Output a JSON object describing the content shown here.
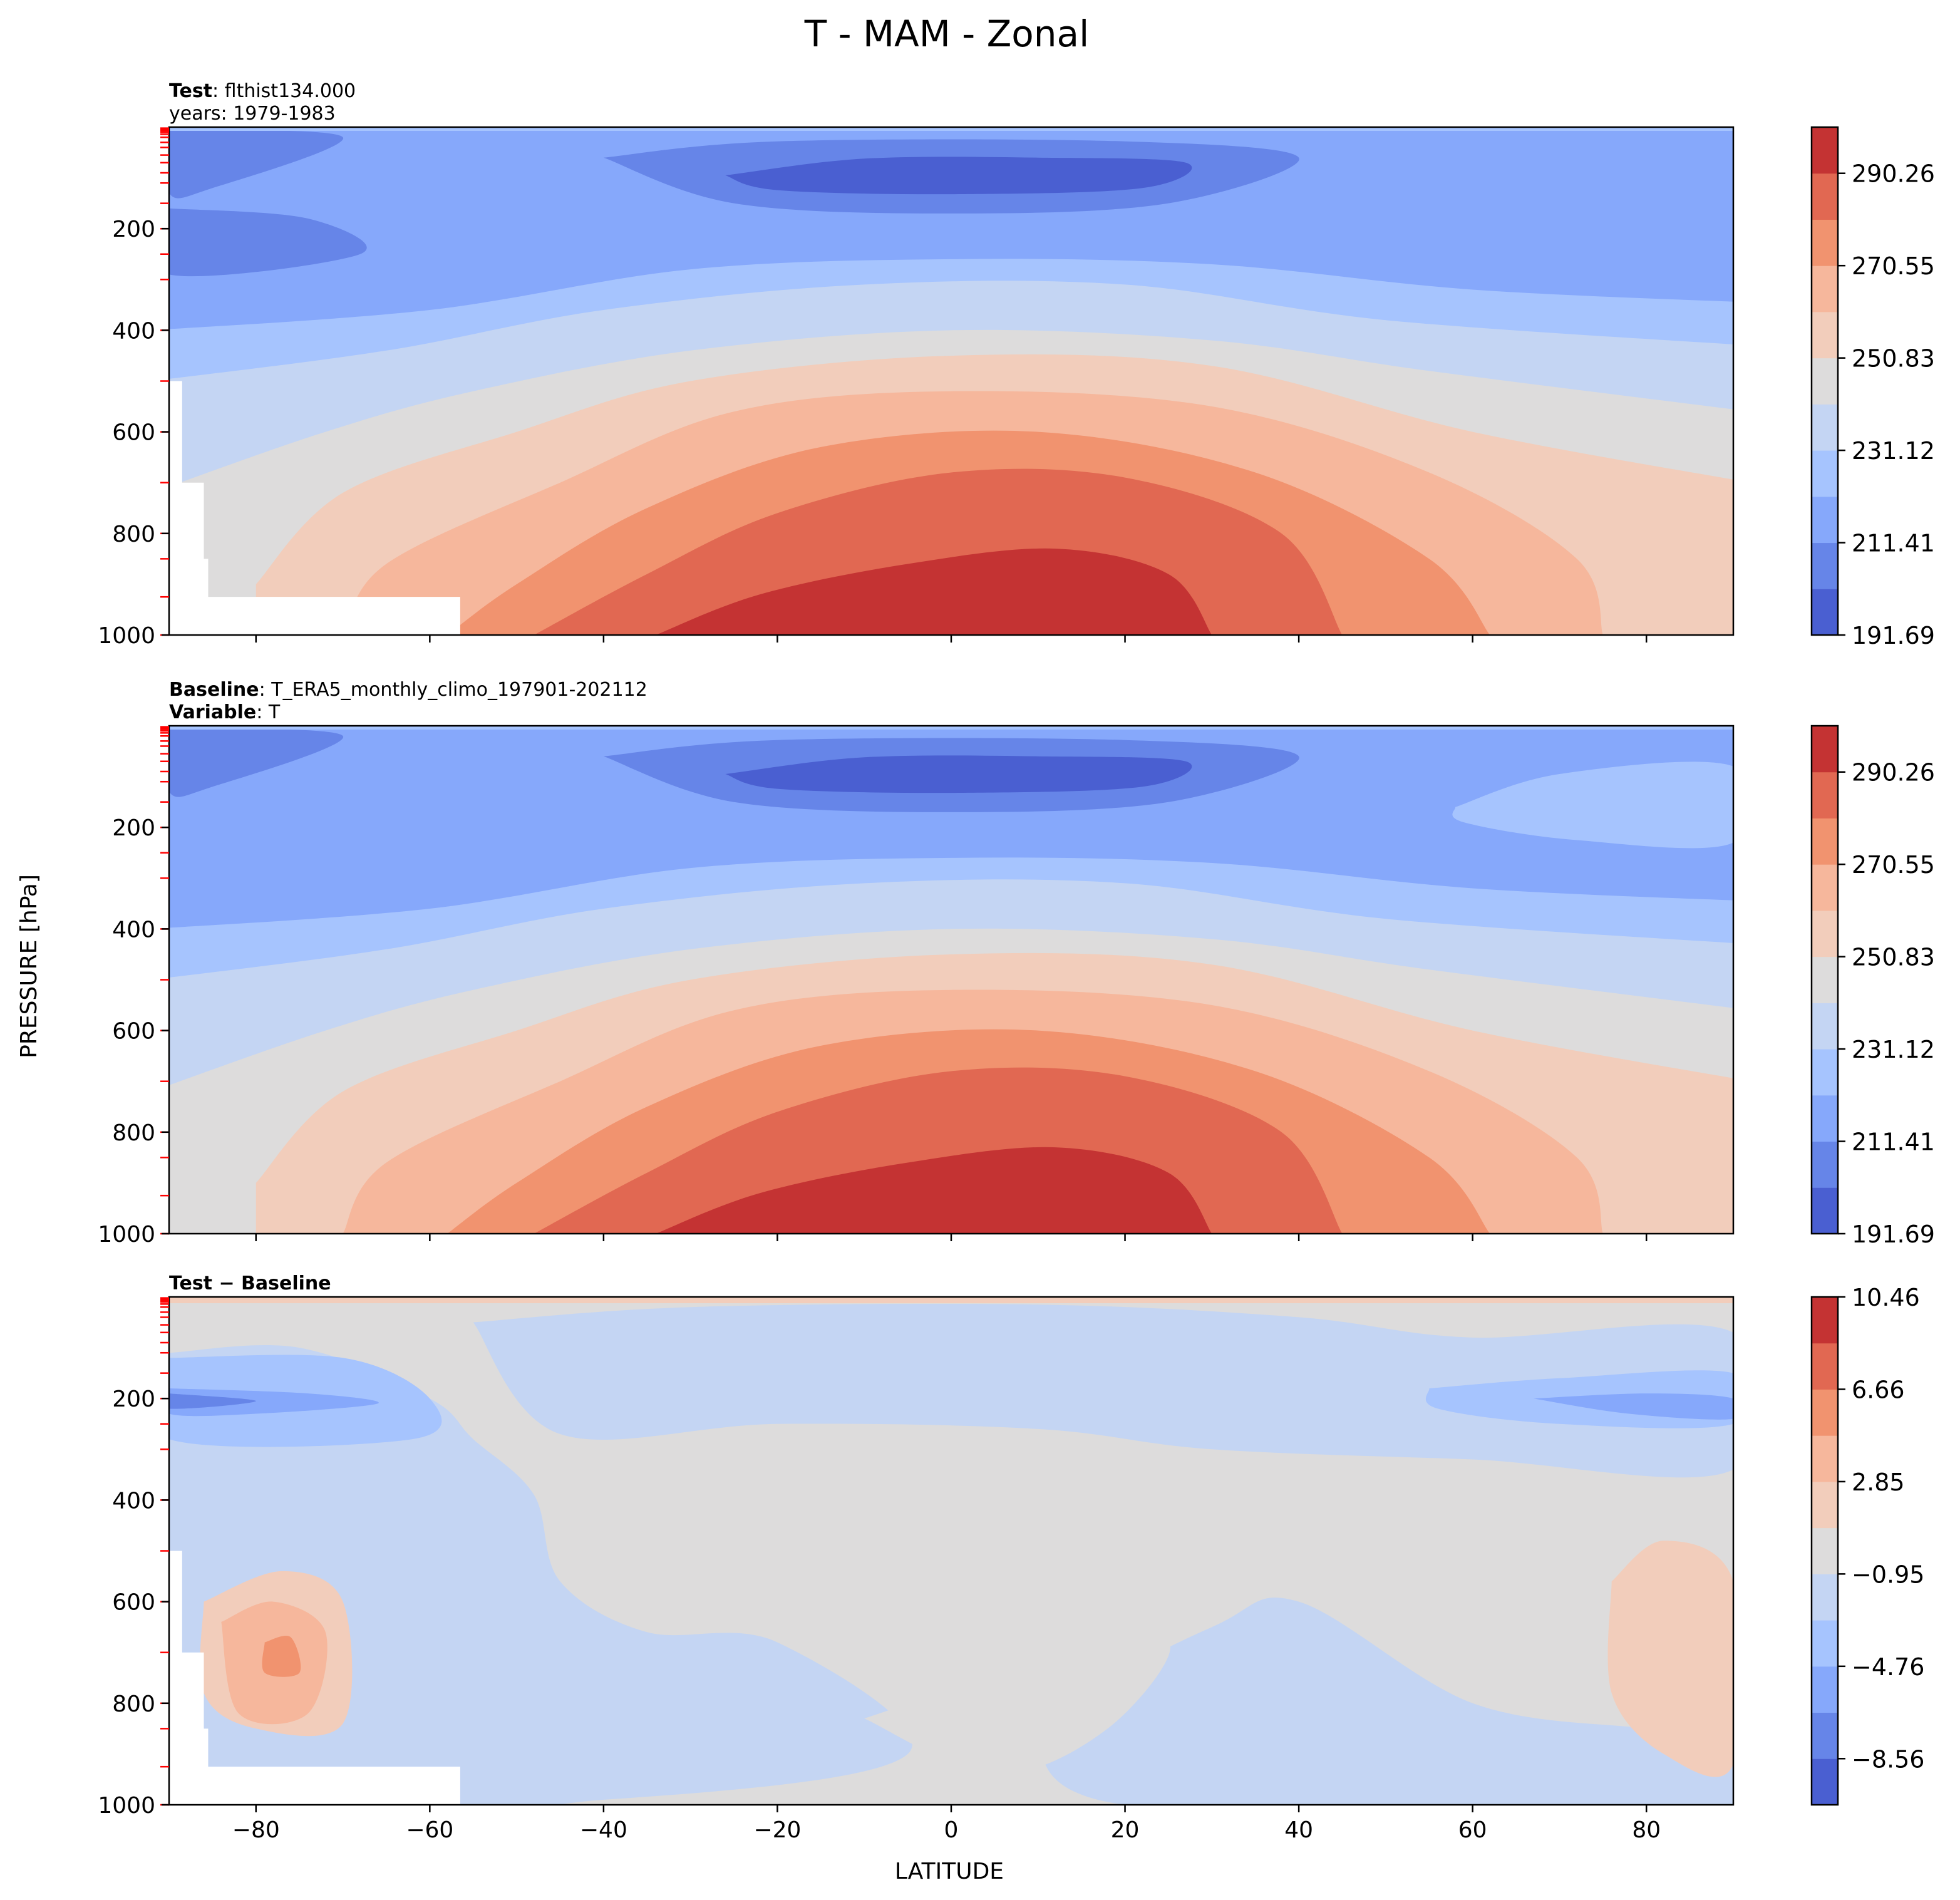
{
  "figure": {
    "title": "T - MAM - Zonal",
    "xlabel": "LATITUDE",
    "ylabel": "PRESSURE [hPa]"
  },
  "panels": [
    {
      "header_lines": [
        {
          "bold": "Test",
          "text": ": flthist134.000"
        },
        {
          "bold": "",
          "text": "years: 1979-1983"
        }
      ],
      "colorbar_ticks": [
        "191.69",
        "211.41",
        "231.12",
        "250.83",
        "270.55",
        "290.26"
      ]
    },
    {
      "header_lines": [
        {
          "bold": "Baseline",
          "text": ": T_ERA5_monthly_climo_197901-202112"
        },
        {
          "bold": "Variable",
          "text": ": T"
        }
      ],
      "colorbar_ticks": [
        "191.69",
        "211.41",
        "231.12",
        "250.83",
        "270.55",
        "290.26"
      ]
    },
    {
      "header_lines": [
        {
          "bold": "Test − Baseline",
          "text": ""
        }
      ],
      "colorbar_ticks": [
        "−8.56",
        "−4.76",
        "−0.95",
        "2.85",
        "6.66",
        "10.46"
      ]
    }
  ],
  "colors": {
    "coolwarm_levels": [
      "#4a5fd1",
      "#6685e8",
      "#86a8fb",
      "#a6c4fe",
      "#c4d5f3",
      "#dddcdc",
      "#f2cdbb",
      "#f6b79c",
      "#f1936f",
      "#e16852",
      "#c43333"
    ],
    "missing": "#ffffff",
    "level_tick_marks": "#ff0000"
  },
  "chart_data": [
    {
      "type": "heatmap",
      "name": "test",
      "x_range": [
        -90,
        90
      ],
      "x_ticks": [
        -80,
        -60,
        -40,
        -20,
        0,
        20,
        40,
        60,
        80
      ],
      "y_range": [
        1000,
        0
      ],
      "y_ticks": [
        1000,
        800,
        600,
        400,
        200
      ],
      "y_inverted": true,
      "contour_levels": [
        191.69,
        201.55,
        211.41,
        221.27,
        231.12,
        240.98,
        250.83,
        260.69,
        270.55,
        280.41,
        290.26,
        300.12
      ],
      "levels_kelvin_min_max": [
        191.69,
        300.12
      ],
      "tropopause_min_lat": 0,
      "tropopause_min_pressure": 85,
      "surface_max_value_region": {
        "lat": [
          -30,
          30
        ],
        "pressure": [
          850,
          1000
        ]
      }
    },
    {
      "type": "heatmap",
      "name": "baseline",
      "x_range": [
        -90,
        90
      ],
      "x_ticks": [
        -80,
        -60,
        -40,
        -20,
        0,
        20,
        40,
        60,
        80
      ],
      "y_range": [
        1000,
        0
      ],
      "y_ticks": [
        1000,
        800,
        600,
        400,
        200
      ],
      "y_inverted": true,
      "contour_levels": [
        191.69,
        201.55,
        211.41,
        221.27,
        231.12,
        240.98,
        250.83,
        260.69,
        270.55,
        280.41,
        290.26,
        300.12
      ]
    },
    {
      "type": "heatmap",
      "name": "difference",
      "x_range": [
        -90,
        90
      ],
      "x_ticks": [
        -80,
        -60,
        -40,
        -20,
        0,
        20,
        40,
        60,
        80
      ],
      "y_range": [
        1000,
        0
      ],
      "y_ticks": [
        1000,
        800,
        600,
        400,
        200
      ],
      "y_inverted": true,
      "contour_levels": [
        -10.46,
        -8.56,
        -6.66,
        -4.76,
        -2.85,
        -0.95,
        0.95,
        2.85,
        4.76,
        6.66,
        8.56,
        10.46
      ]
    }
  ]
}
